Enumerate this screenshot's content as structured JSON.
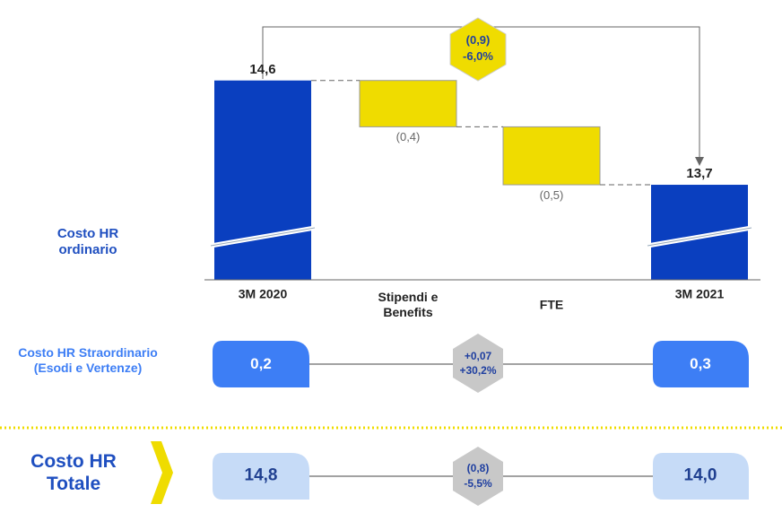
{
  "chart_data": {
    "type": "waterfall",
    "series_name": "Costo HR ordinario",
    "categories": [
      "3M 2020",
      "Stipendi e Benefits",
      "FTE",
      "3M 2021"
    ],
    "values": [
      14.6,
      -0.4,
      -0.5,
      13.7
    ],
    "value_labels": [
      "14,6",
      "(0,4)",
      "(0,5)",
      "13,7"
    ],
    "measure": [
      "absolute",
      "relative",
      "relative",
      "absolute"
    ],
    "colors": {
      "absolute": "#0a3fbf",
      "relative": "#efdc00"
    },
    "ylim": [
      12.88,
      14.83
    ],
    "axis_break": true,
    "annotation": {
      "label": "(0,9)",
      "pct_label": "-6,0%"
    }
  },
  "extraordinary": {
    "label": "Costo HR Straordinario (Esodi e Vertenze)",
    "start": "0,2",
    "end": "0,3",
    "delta": "+0,07",
    "pct": "+30,2%"
  },
  "total": {
    "label": "Costo HR Totale",
    "start": "14,8",
    "end": "14,0",
    "delta": "(0,8)",
    "pct": "-5,5%"
  }
}
